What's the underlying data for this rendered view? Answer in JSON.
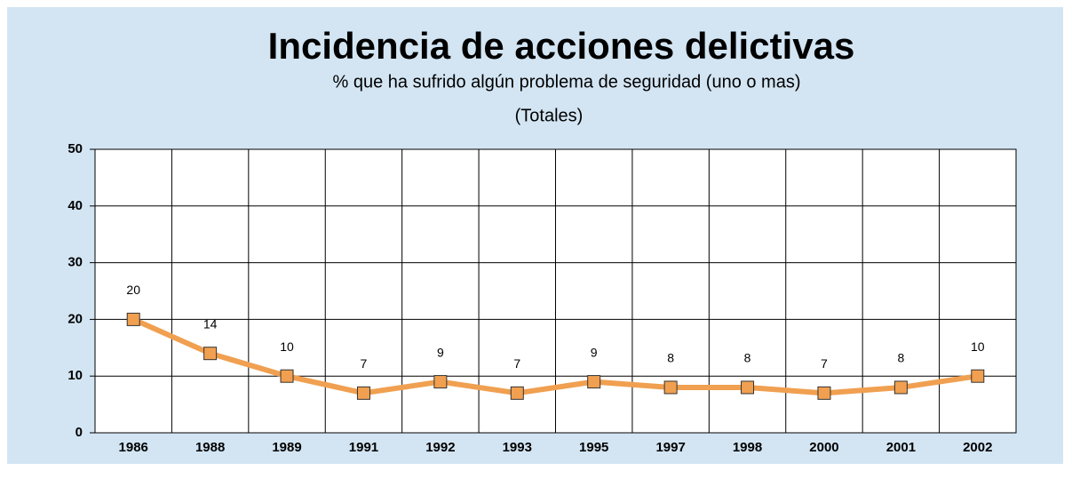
{
  "chart_data": {
    "type": "line",
    "title": "Incidencia de acciones delictivas",
    "subtitle": "% que ha sufrido algún problema de seguridad (uno o mas)",
    "note": "(Totales)",
    "categories": [
      "1986",
      "1988",
      "1989",
      "1991",
      "1992",
      "1993",
      "1995",
      "1997",
      "1998",
      "2000",
      "2001",
      "2002"
    ],
    "values": [
      20,
      14,
      10,
      7,
      9,
      7,
      9,
      8,
      8,
      7,
      8,
      10
    ],
    "color": "#f0a050",
    "ylim": [
      0,
      50
    ],
    "yticks": [
      0,
      10,
      20,
      30,
      40,
      50
    ],
    "grid": true
  }
}
